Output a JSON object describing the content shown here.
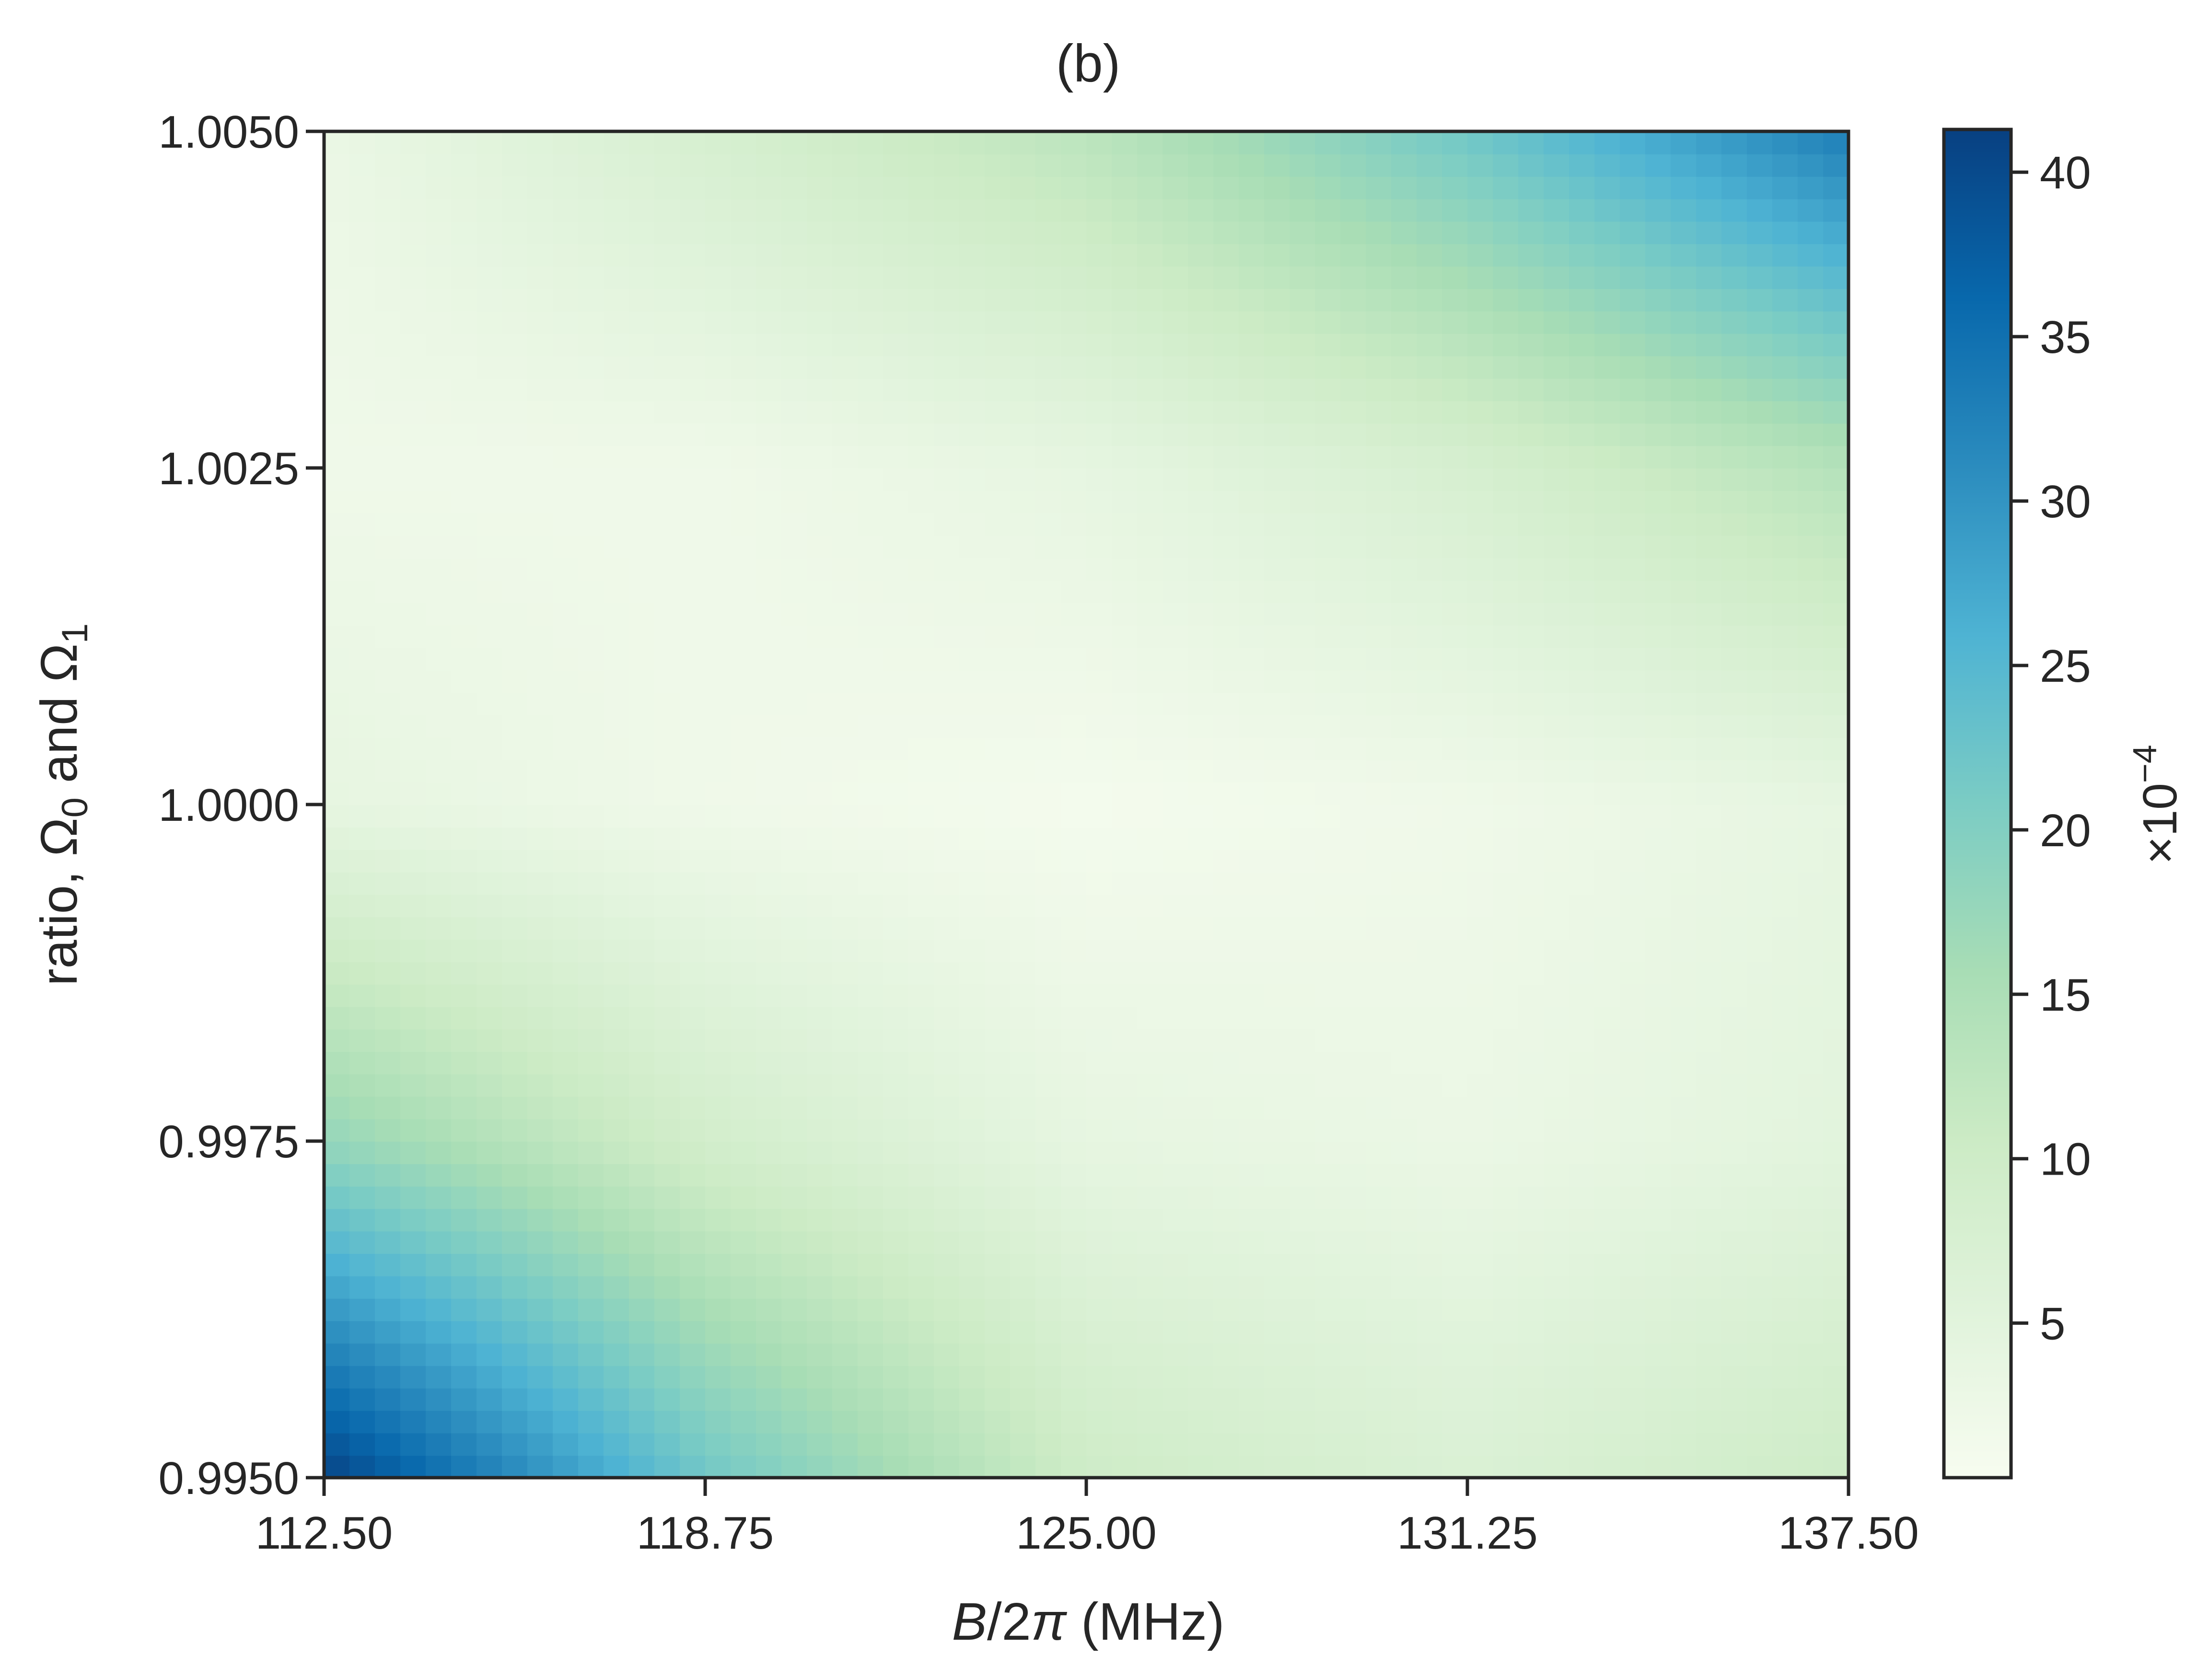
{
  "chart_data": {
    "type": "heatmap",
    "title": "(b)",
    "xlabel": {
      "italic_1": "B",
      "text_2": "/2",
      "italic_3": "π",
      "text_4": " (MHz)"
    },
    "ylabel": {
      "text_1": "ratio, Ω",
      "sub_1": "0",
      "text_2": " and Ω",
      "sub_2": "1"
    },
    "colorbar_label": {
      "text_1": "×10",
      "sup_1": "−4"
    },
    "xlim": [
      112.5,
      137.5
    ],
    "ylim": [
      0.995,
      1.005
    ],
    "x_ticks": [
      112.5,
      118.75,
      125.0,
      131.25,
      137.5
    ],
    "x_tick_labels": [
      "112.50",
      "118.75",
      "125.00",
      "131.25",
      "137.50"
    ],
    "y_ticks": [
      0.995,
      0.9975,
      1.0,
      1.0025,
      1.005
    ],
    "y_tick_labels": [
      "0.9950",
      "0.9975",
      "1.0000",
      "1.0025",
      "1.0050"
    ],
    "colorbar_range": [
      0.3,
      41.3
    ],
    "colorbar_ticks": [
      5,
      10,
      15,
      20,
      25,
      30,
      35,
      40
    ],
    "colorbar_tick_labels": [
      "5",
      "10",
      "15",
      "20",
      "25",
      "30",
      "35",
      "40"
    ],
    "colormap": "GnBu",
    "grid_x": [
      112.5,
      118.75,
      125.0,
      131.25,
      137.5
    ],
    "grid_y": [
      0.995,
      0.9975,
      1.0,
      1.0025,
      1.005
    ],
    "values": [
      [
        41,
        22,
        10,
        7,
        10
      ],
      [
        18,
        9,
        4,
        3,
        5
      ],
      [
        4,
        2,
        1,
        2,
        4
      ],
      [
        2,
        2,
        4,
        8,
        14
      ],
      [
        3,
        8,
        13,
        22,
        33
      ]
    ],
    "grid": false
  }
}
